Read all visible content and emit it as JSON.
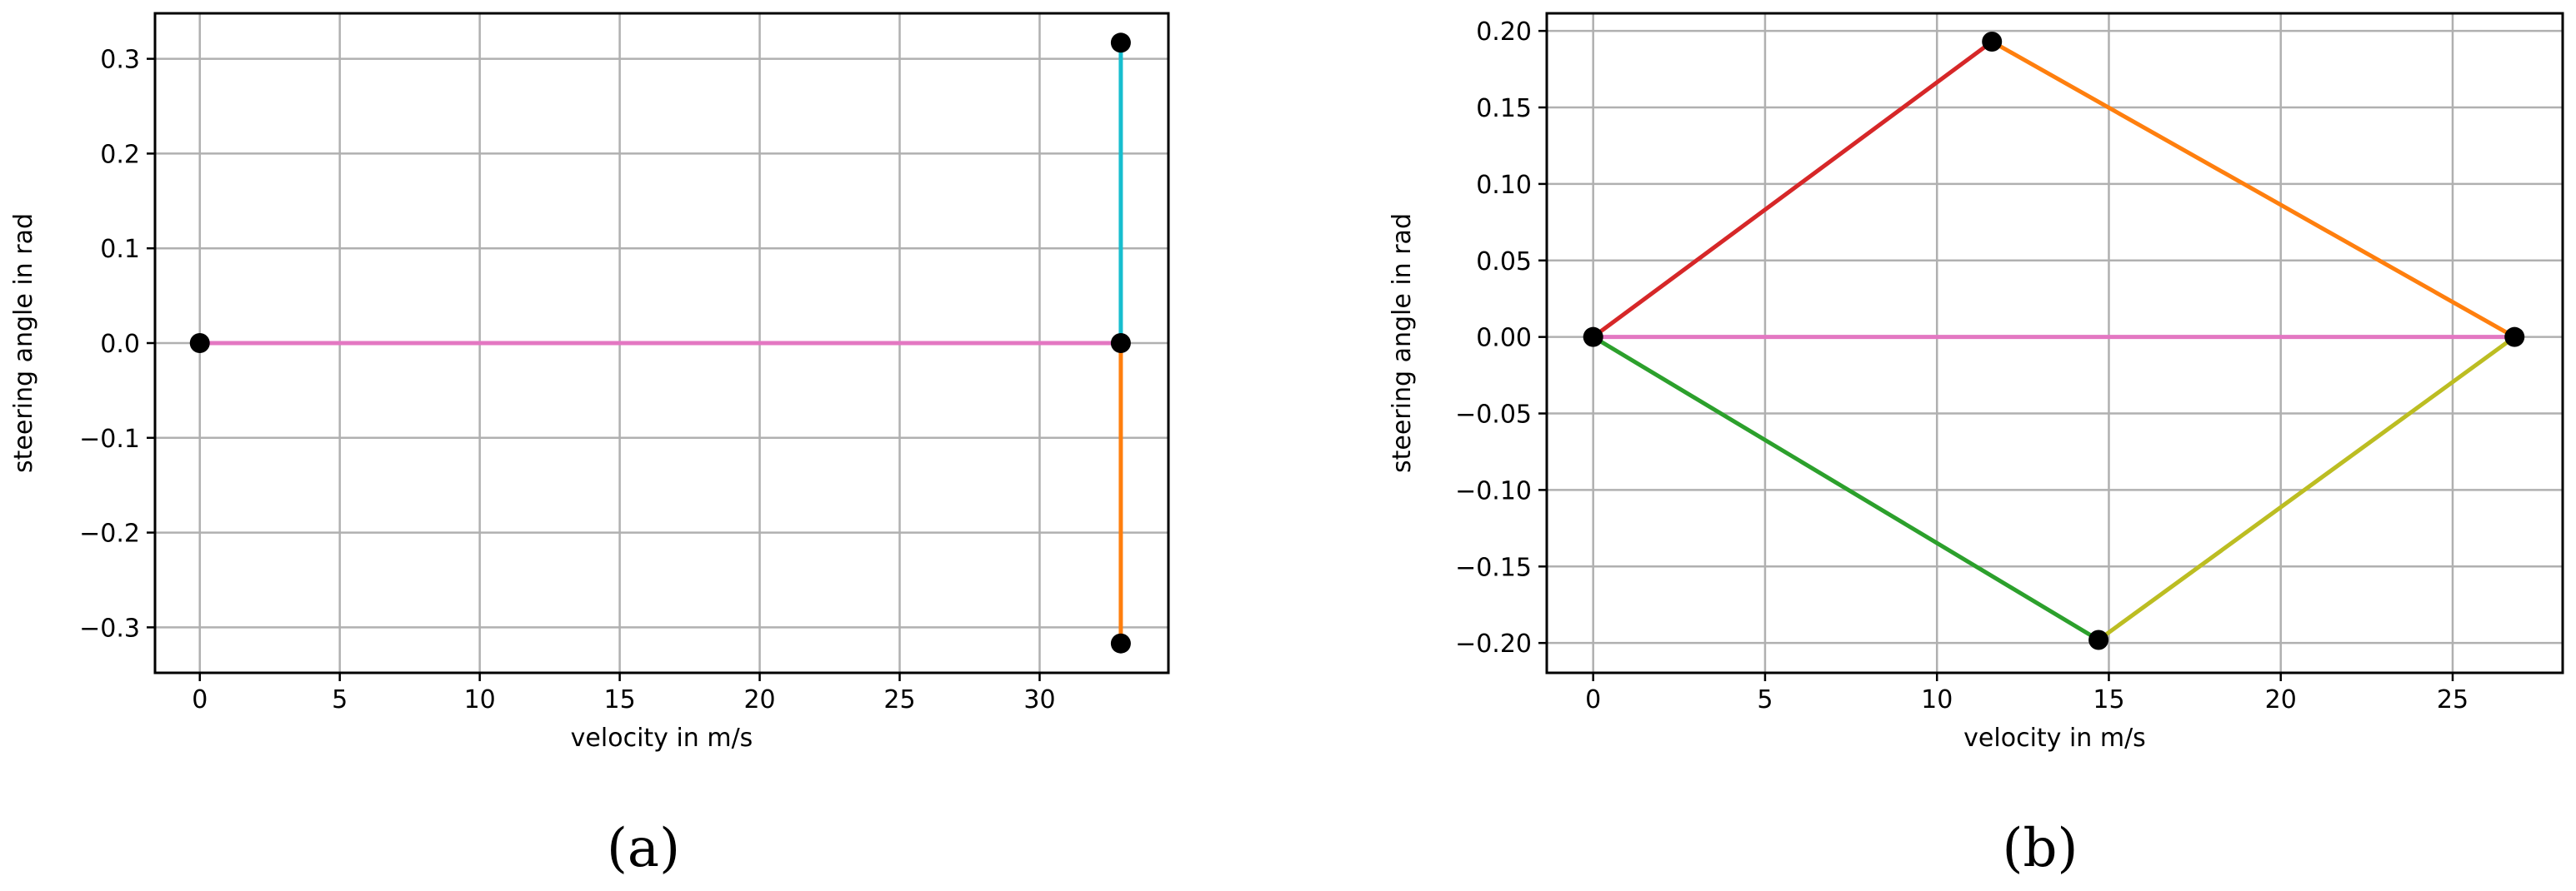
{
  "chart_data": [
    {
      "type": "line",
      "panel_label": "(a)",
      "xlabel": "velocity in m/s",
      "ylabel": "steering angle in rad",
      "xlim": [
        -1.6,
        34.6
      ],
      "ylim": [
        -0.348,
        0.348
      ],
      "xticks": [
        0,
        5,
        10,
        15,
        20,
        25,
        30
      ],
      "yticks": [
        -0.3,
        -0.2,
        -0.1,
        0.0,
        0.1,
        0.2,
        0.3
      ],
      "ytick_labels": [
        "−0.3",
        "−0.2",
        "−0.1",
        "0.0",
        "0.1",
        "0.2",
        "0.3"
      ],
      "grid": true,
      "series": [
        {
          "color": "#e377c2",
          "x": [
            0,
            32.9
          ],
          "y": [
            0.0,
            0.0
          ]
        },
        {
          "color": "#17becf",
          "x": [
            32.9,
            32.9
          ],
          "y": [
            0.0,
            0.317
          ]
        },
        {
          "color": "#ff7f0e",
          "x": [
            32.9,
            32.9
          ],
          "y": [
            0.0,
            -0.317
          ]
        }
      ],
      "points": {
        "color": "#000000",
        "x": [
          0,
          32.9,
          32.9,
          32.9
        ],
        "y": [
          0.0,
          0.317,
          0.0,
          -0.317
        ]
      }
    },
    {
      "type": "line",
      "panel_label": "(b)",
      "xlabel": "velocity in m/s",
      "ylabel": "steering angle in rad",
      "xlim": [
        -1.35,
        28.2
      ],
      "ylim": [
        -0.2195,
        0.2115
      ],
      "xticks": [
        0,
        5,
        10,
        15,
        20,
        25
      ],
      "yticks": [
        -0.2,
        -0.15,
        -0.1,
        -0.05,
        0.0,
        0.05,
        0.1,
        0.15,
        0.2
      ],
      "ytick_labels": [
        "−0.20",
        "−0.15",
        "−0.10",
        "−0.05",
        "0.00",
        "0.05",
        "0.10",
        "0.15",
        "0.20"
      ],
      "grid": true,
      "series": [
        {
          "color": "#d62728",
          "x": [
            0,
            11.6
          ],
          "y": [
            0.0,
            0.193
          ]
        },
        {
          "color": "#ff7f0e",
          "x": [
            11.6,
            26.8
          ],
          "y": [
            0.193,
            0.0
          ]
        },
        {
          "color": "#2ca02c",
          "x": [
            0,
            14.7
          ],
          "y": [
            0.0,
            -0.198
          ]
        },
        {
          "color": "#bcbd22",
          "x": [
            14.7,
            26.8
          ],
          "y": [
            -0.198,
            0.0
          ]
        },
        {
          "color": "#e377c2",
          "x": [
            0,
            26.8
          ],
          "y": [
            0.0,
            0.0
          ]
        }
      ],
      "points": {
        "color": "#000000",
        "x": [
          0,
          11.6,
          26.8,
          14.7
        ],
        "y": [
          0.0,
          0.193,
          0.0,
          -0.198
        ]
      }
    }
  ]
}
